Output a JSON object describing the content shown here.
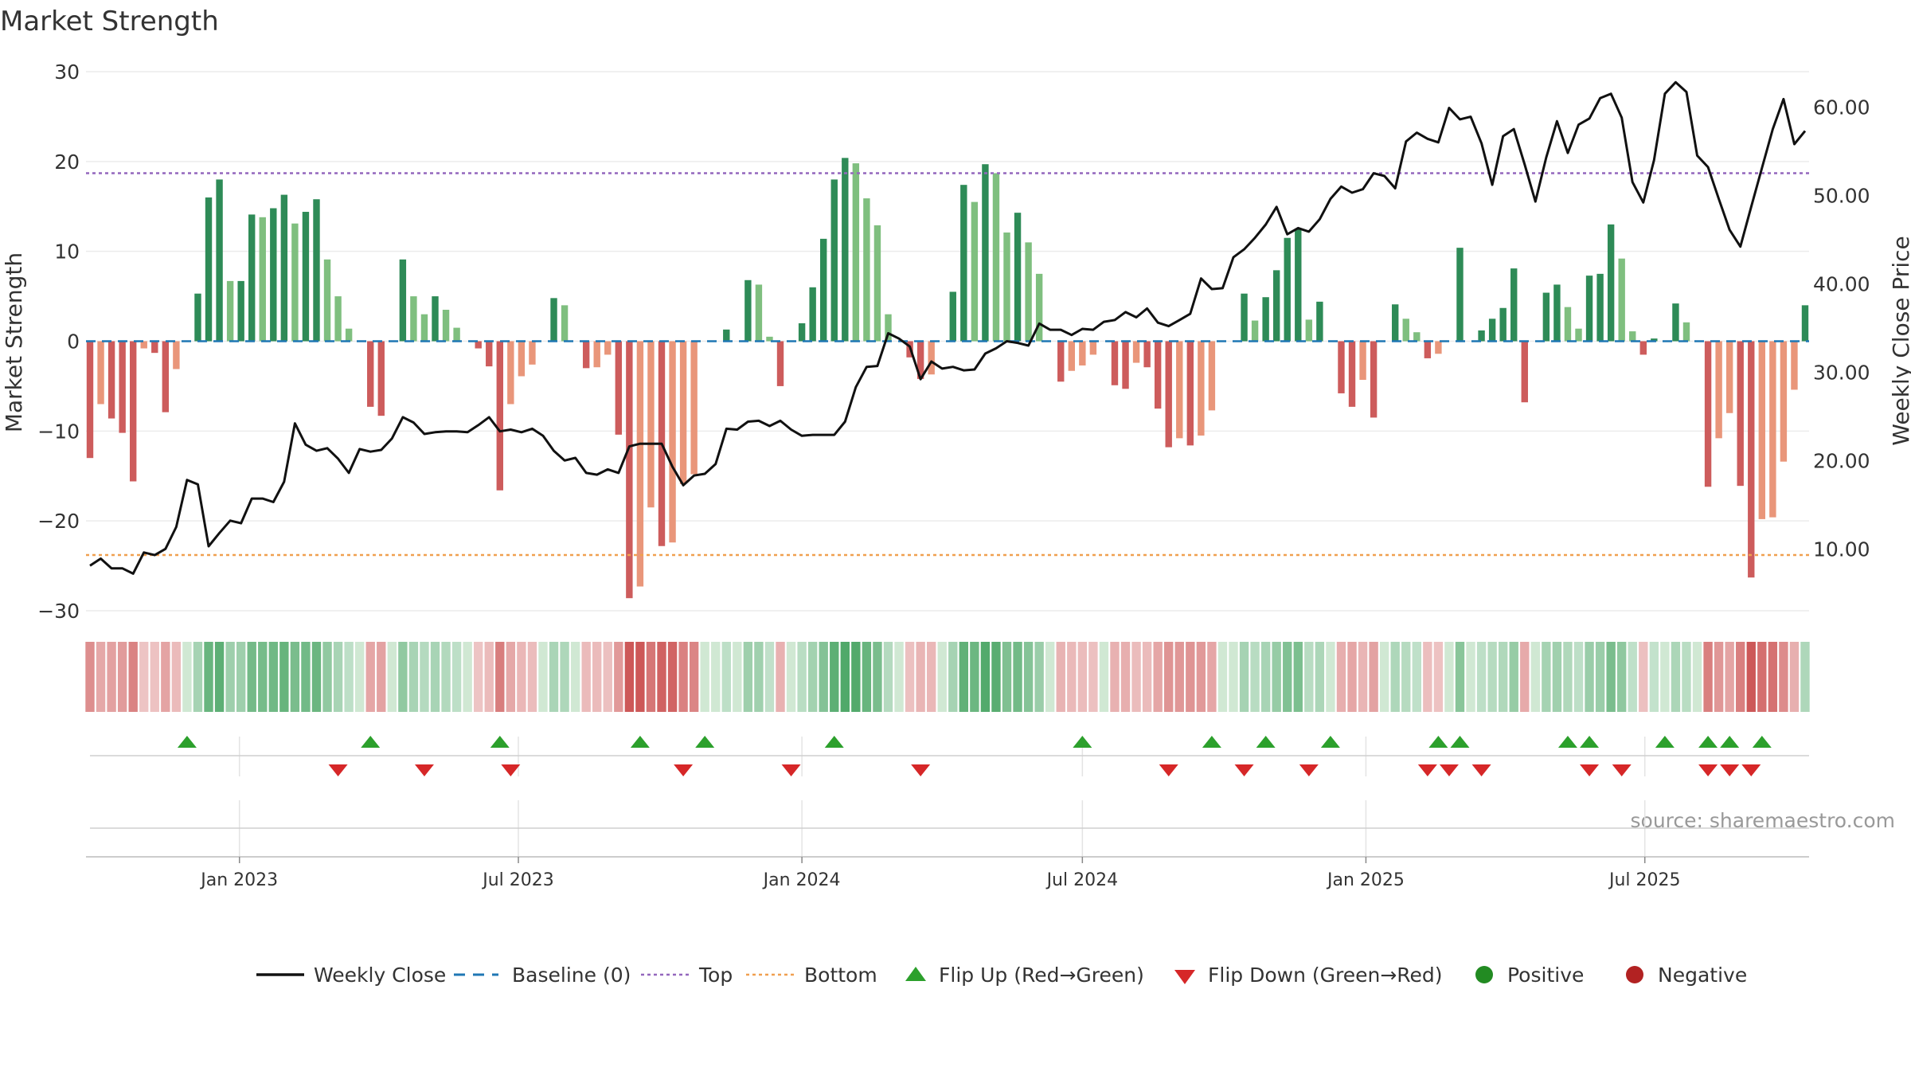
{
  "chart_data": {
    "type": "bar",
    "title": "Market Strength",
    "source": "source: sharemaestro.com",
    "y_left": {
      "label": "Market Strength",
      "ylim": [
        -30,
        30
      ],
      "ticks": [
        30,
        20,
        10,
        0,
        -10,
        -20,
        -30
      ],
      "tick_labels": [
        "30",
        "20",
        "10",
        "0",
        "−10",
        "−20",
        "−30"
      ]
    },
    "y_right": {
      "label": "Weekly Close Price",
      "ylim": [
        3,
        64
      ],
      "ticks": [
        60,
        50,
        40,
        30,
        20,
        10
      ],
      "tick_labels": [
        "60.00",
        "50.00",
        "40.00",
        "30.00",
        "20.00",
        "10.00"
      ]
    },
    "x_axis": {
      "start": "2022-09-26",
      "weeks": 157,
      "step_days": 7,
      "tick_dates": [
        "2023-01-01",
        "2023-07-01",
        "2024-01-01",
        "2024-07-01",
        "2025-01-01",
        "2025-07-01"
      ],
      "tick_labels": [
        "Jan 2023",
        "Jul 2023",
        "Jan 2024",
        "Jul 2024",
        "Jan 2025",
        "Jul 2025"
      ]
    },
    "reference_lines": {
      "baseline": 0,
      "top": 18.7,
      "bottom": -23.8
    },
    "colors": {
      "positive_strong": "#2e8b57",
      "positive_weak": "#7fbf7f",
      "negative_strong": "#cd5c5c",
      "negative_weak": "#e9967a",
      "close": "#111111",
      "baseline": "#1f77b4",
      "top": "#9467bd",
      "bottom": "#f0a050",
      "flip_up": "#2ca02c",
      "flip_down": "#d62728",
      "positive_marker": "#228b22",
      "negative_marker": "#b22222"
    },
    "strength": [
      -13,
      -7,
      -8.6,
      -10.2,
      -15.6,
      -0.8,
      -1.3,
      -7.9,
      -3.1,
      0,
      5.3,
      16,
      18,
      6.7,
      6.7,
      14.1,
      13.8,
      14.8,
      16.3,
      13.1,
      14.4,
      15.8,
      9.1,
      5,
      1.4,
      0,
      -7.3,
      -8.3,
      0,
      9.1,
      5,
      3,
      5,
      3.5,
      1.5,
      0,
      -0.8,
      -2.8,
      -16.6,
      -7,
      -3.9,
      -2.6,
      0,
      4.8,
      4,
      0,
      -3,
      -2.9,
      -1.5,
      -10.4,
      -28.6,
      -27.3,
      -18.5,
      -22.8,
      -22.4,
      -15.9,
      -14.8,
      0,
      0,
      1.3,
      0,
      6.8,
      6.3,
      0.5,
      -5,
      0,
      2,
      6,
      11.4,
      18,
      20.4,
      19.8,
      15.9,
      12.9,
      3,
      0,
      -1.8,
      -4.2,
      -3.7,
      0,
      5.5,
      17.4,
      15.5,
      19.7,
      18.7,
      12.1,
      14.3,
      11,
      7.5,
      0,
      -4.5,
      -3.3,
      -2.7,
      -1.5,
      0,
      -4.9,
      -5.3,
      -2.4,
      -2.9,
      -7.5,
      -11.8,
      -10.8,
      -11.6,
      -10.5,
      -7.7,
      0,
      0,
      5.3,
      2.3,
      4.9,
      7.9,
      11.5,
      12.5,
      2.4,
      4.4,
      0,
      -5.8,
      -7.3,
      -4.3,
      -8.5,
      0,
      4.1,
      2.5,
      1,
      -1.9,
      -1.4,
      0,
      10.4,
      0,
      1.2,
      2.5,
      3.7,
      8.1,
      -6.8,
      0,
      5.4,
      6.3,
      3.8,
      1.4,
      7.3,
      7.5,
      13,
      9.2,
      1.1,
      -1.5,
      0.3,
      0,
      4.2,
      2.1,
      0,
      -16.2,
      -10.8,
      -8,
      -16.1,
      -26.3,
      -19.8,
      -19.6,
      -13.4,
      -5.4,
      4
    ],
    "weekly_close": [
      8.1,
      8.9,
      7.8,
      7.8,
      7.2,
      9.6,
      9.3,
      10,
      12.5,
      17.8,
      17.3,
      10.3,
      11.8,
      13.2,
      12.9,
      15.7,
      15.7,
      15.3,
      17.6,
      24.2,
      21.8,
      21.1,
      21.4,
      20.2,
      18.6,
      21.3,
      21,
      21.2,
      22.5,
      24.9,
      24.3,
      23,
      23.2,
      23.3,
      23.3,
      23.2,
      24,
      24.9,
      23.3,
      23.5,
      23.2,
      23.6,
      22.8,
      21.1,
      20,
      20.3,
      18.6,
      18.4,
      19,
      18.6,
      21.6,
      21.9,
      21.9,
      21.9,
      19.3,
      17.2,
      18.3,
      18.5,
      19.6,
      23.6,
      23.5,
      24.4,
      24.5,
      23.9,
      24.5,
      23.5,
      22.8,
      22.9,
      22.9,
      22.9,
      24.4,
      28.3,
      30.6,
      30.7,
      34.4,
      33.8,
      32.9,
      29.2,
      31.2,
      30.4,
      30.6,
      30.2,
      30.3,
      32.1,
      32.7,
      33.5,
      33.3,
      33,
      35.5,
      34.8,
      34.8,
      34.2,
      34.9,
      34.8,
      35.7,
      35.9,
      36.8,
      36.2,
      37.2,
      35.6,
      35.2,
      35.9,
      36.6,
      40.6,
      39.4,
      39.5,
      43,
      43.9,
      45.2,
      46.7,
      48.7,
      45.6,
      46.3,
      45.9,
      47.3,
      49.6,
      51,
      50.3,
      50.7,
      52.5,
      52.2,
      50.8,
      56.1,
      57.1,
      56.4,
      56,
      59.9,
      58.6,
      58.9,
      55.9,
      51.2,
      56.7,
      57.5,
      53.5,
      49.3,
      54.3,
      58.4,
      54.8,
      58,
      58.7,
      61,
      61.5,
      58.8,
      51.5,
      49.2,
      54,
      61.5,
      62.8,
      61.7,
      54.5,
      53.2,
      49.6,
      46.1,
      44.2,
      48.7,
      53.1,
      57.5,
      60.9,
      55.8,
      57.3
    ],
    "flip_up_weeks": [
      9,
      26,
      38,
      51,
      57,
      69,
      92,
      104,
      109,
      115,
      125,
      127,
      137,
      139,
      146,
      150,
      152,
      155
    ],
    "flip_down_weeks": [
      23,
      31,
      39,
      55,
      65,
      77,
      100,
      107,
      113,
      124,
      126,
      129,
      139,
      142,
      150,
      152,
      154
    ],
    "legend": [
      {
        "label": "Weekly Close",
        "kind": "line",
        "color": "#111111"
      },
      {
        "label": "Baseline (0)",
        "kind": "dash",
        "color": "#1f77b4"
      },
      {
        "label": "Top",
        "kind": "dot",
        "color": "#9467bd"
      },
      {
        "label": "Bottom",
        "kind": "dot",
        "color": "#f0a050"
      },
      {
        "label": "Flip Up (Red→Green)",
        "kind": "tri-up",
        "color": "#2ca02c"
      },
      {
        "label": "Flip Down (Green→Red)",
        "kind": "tri-down",
        "color": "#d62728"
      },
      {
        "label": "Positive",
        "kind": "circle",
        "color": "#228b22"
      },
      {
        "label": "Negative",
        "kind": "circle",
        "color": "#b22222"
      }
    ]
  }
}
